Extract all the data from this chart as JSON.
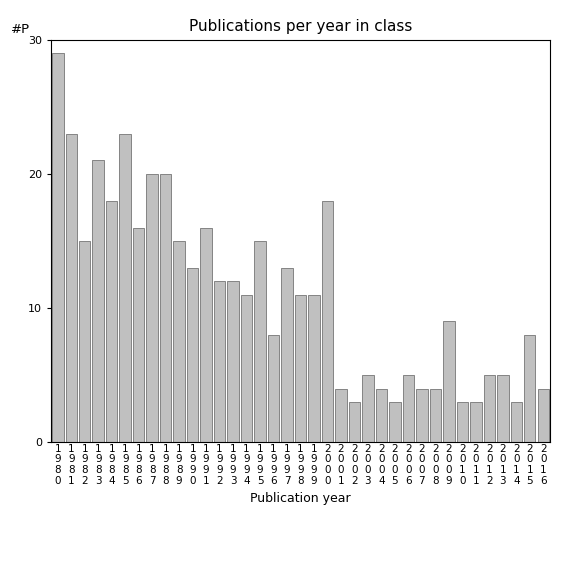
{
  "title": "Publications per year in class",
  "xlabel": "Publication year",
  "ylabel": "#P",
  "bar_color": "#c0c0c0",
  "edge_color": "#606060",
  "background_color": "#ffffff",
  "ylim": [
    0,
    30
  ],
  "yticks": [
    0,
    10,
    20,
    30
  ],
  "years": [
    "1980",
    "1981",
    "1982",
    "1983",
    "1984",
    "1985",
    "1986",
    "1987",
    "1988",
    "1989",
    "1990",
    "1991",
    "1992",
    "1993",
    "1994",
    "1995",
    "1996",
    "1997",
    "1998",
    "1999",
    "2000",
    "2001",
    "2002",
    "2003",
    "2004",
    "2005",
    "2006",
    "2007",
    "2008",
    "2009",
    "2010",
    "2011",
    "2012",
    "2013",
    "2014",
    "2015",
    "2016"
  ],
  "values": [
    29,
    23,
    15,
    21,
    18,
    23,
    16,
    20,
    20,
    15,
    13,
    16,
    12,
    12,
    11,
    15,
    8,
    13,
    11,
    11,
    18,
    4,
    3,
    5,
    4,
    3,
    5,
    4,
    4,
    9,
    3,
    3,
    5,
    5,
    3,
    8,
    4
  ],
  "title_fontsize": 11,
  "label_fontsize": 9,
  "tick_fontsize": 7.5
}
